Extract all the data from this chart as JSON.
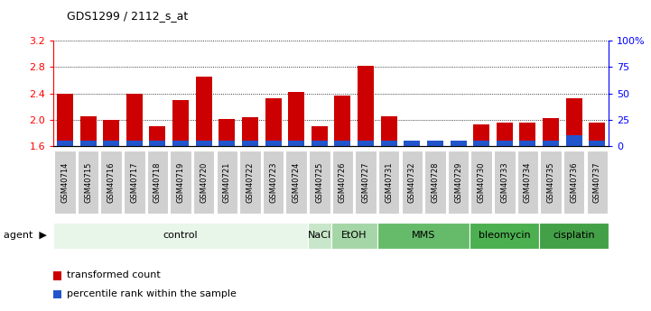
{
  "title": "GDS1299 / 2112_s_at",
  "samples": [
    "GSM40714",
    "GSM40715",
    "GSM40716",
    "GSM40717",
    "GSM40718",
    "GSM40719",
    "GSM40720",
    "GSM40721",
    "GSM40722",
    "GSM40723",
    "GSM40724",
    "GSM40725",
    "GSM40726",
    "GSM40727",
    "GSM40731",
    "GSM40732",
    "GSM40728",
    "GSM40729",
    "GSM40730",
    "GSM40733",
    "GSM40734",
    "GSM40735",
    "GSM40736",
    "GSM40737"
  ],
  "transformed_count": [
    2.4,
    2.05,
    2.0,
    2.4,
    1.9,
    2.3,
    2.65,
    2.01,
    2.04,
    2.33,
    2.42,
    1.9,
    2.37,
    2.82,
    2.05,
    1.65,
    1.68,
    1.65,
    1.93,
    1.95,
    1.96,
    2.03,
    2.32,
    1.95
  ],
  "percentile_rank": [
    5,
    5,
    5,
    5,
    5,
    5,
    5,
    5,
    5,
    5,
    5,
    5,
    5,
    5,
    5,
    5,
    5,
    5,
    5,
    5,
    5,
    5,
    10,
    5
  ],
  "agents": [
    {
      "label": "control",
      "start": 0,
      "end": 10,
      "color": "#e8f5e9"
    },
    {
      "label": "NaCl",
      "start": 11,
      "end": 11,
      "color": "#c8e6c9"
    },
    {
      "label": "EtOH",
      "start": 12,
      "end": 13,
      "color": "#a5d6a7"
    },
    {
      "label": "MMS",
      "start": 14,
      "end": 17,
      "color": "#66bb6a"
    },
    {
      "label": "bleomycin",
      "start": 18,
      "end": 20,
      "color": "#4caf50"
    },
    {
      "label": "cisplatin",
      "start": 21,
      "end": 23,
      "color": "#43a047"
    }
  ],
  "ylim_left": [
    1.6,
    3.2
  ],
  "ylim_right": [
    0,
    100
  ],
  "yticks_left": [
    1.6,
    2.0,
    2.4,
    2.8,
    3.2
  ],
  "yticks_right": [
    0,
    25,
    50,
    75,
    100
  ],
  "bar_color": "#cc0000",
  "blue_color": "#2255cc",
  "background_color": "#ffffff",
  "xlabel_bg": "#d0d0d0",
  "agent_label_fontsize": 8,
  "tick_fontsize": 7
}
